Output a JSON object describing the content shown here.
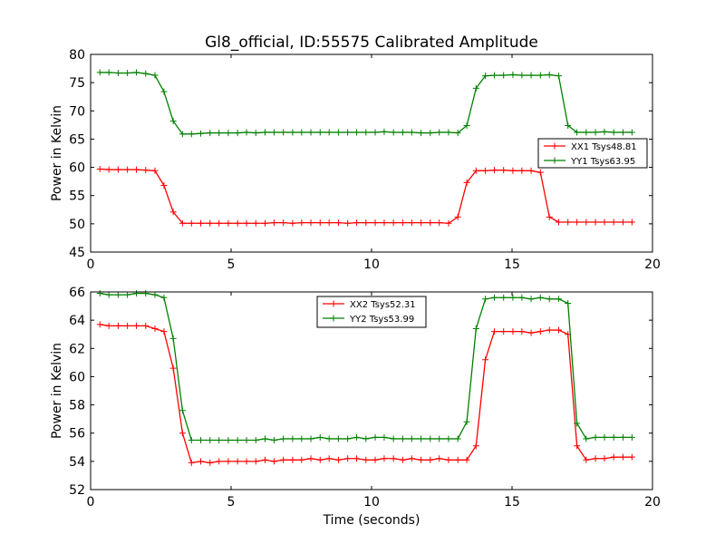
{
  "figure": {
    "title": "Gl8_official, ID:55575 Calibrated Amplitude",
    "xlabel": "Time (seconds)"
  },
  "chart_data": [
    {
      "type": "line",
      "ylabel": "Power in Kelvin",
      "xlim": [
        0,
        20
      ],
      "ylim": [
        45,
        80
      ],
      "xticks": [
        0,
        5,
        10,
        15,
        20
      ],
      "yticks": [
        45,
        50,
        55,
        60,
        65,
        70,
        75,
        80
      ],
      "grid": false,
      "legend_position": "center-right",
      "x": [
        0.33,
        0.65,
        0.98,
        1.31,
        1.63,
        1.96,
        2.29,
        2.61,
        2.94,
        3.27,
        3.59,
        3.92,
        4.25,
        4.57,
        4.9,
        5.23,
        5.55,
        5.88,
        6.21,
        6.53,
        6.86,
        7.19,
        7.51,
        7.84,
        8.17,
        8.49,
        8.82,
        9.15,
        9.47,
        9.8,
        10.13,
        10.45,
        10.78,
        11.11,
        11.43,
        11.76,
        12.09,
        12.41,
        12.74,
        13.07,
        13.39,
        13.72,
        14.05,
        14.37,
        14.7,
        15.03,
        15.35,
        15.68,
        16.01,
        16.33,
        16.66,
        16.99,
        17.31,
        17.64,
        17.97,
        18.29,
        18.62,
        18.95,
        19.27
      ],
      "series": [
        {
          "name": "XX1 Tsys48.81",
          "color": "#ff0000",
          "values": [
            59.7,
            59.6,
            59.6,
            59.6,
            59.6,
            59.5,
            59.4,
            56.8,
            52.1,
            50.1,
            50.1,
            50.1,
            50.1,
            50.1,
            50.1,
            50.1,
            50.1,
            50.1,
            50.1,
            50.2,
            50.2,
            50.1,
            50.2,
            50.2,
            50.2,
            50.2,
            50.2,
            50.1,
            50.2,
            50.2,
            50.2,
            50.2,
            50.2,
            50.2,
            50.2,
            50.2,
            50.2,
            50.2,
            50.1,
            51.2,
            57.3,
            59.4,
            59.4,
            59.5,
            59.5,
            59.4,
            59.4,
            59.4,
            59.1,
            51.2,
            50.3,
            50.3,
            50.3,
            50.3,
            50.3,
            50.3,
            50.3,
            50.3,
            50.3
          ]
        },
        {
          "name": "YY1 Tsys63.95",
          "color": "#008000",
          "values": [
            76.8,
            76.8,
            76.7,
            76.7,
            76.8,
            76.6,
            76.3,
            73.4,
            68.2,
            65.9,
            65.9,
            66.0,
            66.1,
            66.1,
            66.1,
            66.1,
            66.2,
            66.1,
            66.2,
            66.2,
            66.2,
            66.2,
            66.2,
            66.2,
            66.2,
            66.2,
            66.2,
            66.2,
            66.2,
            66.2,
            66.2,
            66.3,
            66.2,
            66.2,
            66.2,
            66.1,
            66.1,
            66.2,
            66.2,
            66.1,
            67.4,
            74.0,
            76.2,
            76.3,
            76.3,
            76.4,
            76.3,
            76.3,
            76.3,
            76.4,
            76.2,
            67.4,
            66.2,
            66.2,
            66.2,
            66.3,
            66.2,
            66.2,
            66.2
          ]
        }
      ]
    },
    {
      "type": "line",
      "ylabel": "Power in Kelvin",
      "xlim": [
        0,
        20
      ],
      "ylim": [
        52,
        66
      ],
      "xticks": [
        0,
        5,
        10,
        15,
        20
      ],
      "yticks": [
        52,
        54,
        56,
        58,
        60,
        62,
        64,
        66
      ],
      "grid": false,
      "legend_position": "top-center",
      "x": [
        0.33,
        0.65,
        0.98,
        1.31,
        1.63,
        1.96,
        2.29,
        2.61,
        2.94,
        3.27,
        3.59,
        3.92,
        4.25,
        4.57,
        4.9,
        5.23,
        5.55,
        5.88,
        6.21,
        6.53,
        6.86,
        7.19,
        7.51,
        7.84,
        8.17,
        8.49,
        8.82,
        9.15,
        9.47,
        9.8,
        10.13,
        10.45,
        10.78,
        11.11,
        11.43,
        11.76,
        12.09,
        12.41,
        12.74,
        13.07,
        13.39,
        13.72,
        14.05,
        14.37,
        14.7,
        15.03,
        15.35,
        15.68,
        16.01,
        16.33,
        16.66,
        16.99,
        17.31,
        17.64,
        17.97,
        18.29,
        18.62,
        18.95,
        19.27
      ],
      "series": [
        {
          "name": "XX2 Tsys52.31",
          "color": "#ff0000",
          "values": [
            63.7,
            63.6,
            63.6,
            63.6,
            63.6,
            63.6,
            63.4,
            63.2,
            60.6,
            56.0,
            53.9,
            54.0,
            53.9,
            54.0,
            54.0,
            54.0,
            54.0,
            54.0,
            54.1,
            54.0,
            54.1,
            54.1,
            54.1,
            54.2,
            54.1,
            54.2,
            54.1,
            54.2,
            54.2,
            54.1,
            54.1,
            54.2,
            54.2,
            54.1,
            54.2,
            54.1,
            54.1,
            54.2,
            54.1,
            54.1,
            54.1,
            55.1,
            61.2,
            63.2,
            63.2,
            63.2,
            63.2,
            63.1,
            63.2,
            63.3,
            63.3,
            63.0,
            55.1,
            54.1,
            54.2,
            54.2,
            54.3,
            54.3,
            54.3
          ]
        },
        {
          "name": "YY2 Tsys53.99",
          "color": "#008000",
          "values": [
            65.9,
            65.8,
            65.8,
            65.8,
            65.9,
            65.9,
            65.8,
            65.6,
            62.7,
            57.6,
            55.5,
            55.5,
            55.5,
            55.5,
            55.5,
            55.5,
            55.5,
            55.5,
            55.6,
            55.5,
            55.6,
            55.6,
            55.6,
            55.6,
            55.7,
            55.6,
            55.6,
            55.6,
            55.7,
            55.6,
            55.7,
            55.7,
            55.6,
            55.6,
            55.6,
            55.6,
            55.6,
            55.6,
            55.6,
            55.6,
            56.8,
            63.4,
            65.5,
            65.6,
            65.6,
            65.6,
            65.6,
            65.5,
            65.6,
            65.5,
            65.5,
            65.2,
            56.7,
            55.6,
            55.7,
            55.7,
            55.7,
            55.7,
            55.7
          ]
        }
      ]
    }
  ]
}
